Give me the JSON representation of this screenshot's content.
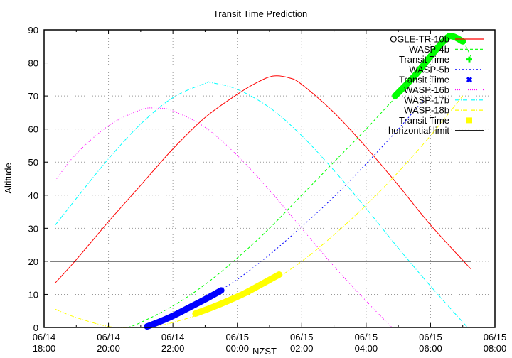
{
  "chart_data": {
    "type": "line",
    "title": "Transit Time Prediction",
    "xlabel": "NZST",
    "ylabel": "Altitude",
    "ylim": [
      0,
      90
    ],
    "xlim_hours_from_1800": [
      0,
      14
    ],
    "grid": true,
    "legend_position": "top-right inside",
    "x_ticks": [
      {
        "t": 0,
        "line1": "06/14",
        "line2": "18:00"
      },
      {
        "t": 2,
        "line1": "06/14",
        "line2": "20:00"
      },
      {
        "t": 4,
        "line1": "06/14",
        "line2": "22:00"
      },
      {
        "t": 6,
        "line1": "06/15",
        "line2": "00:00"
      },
      {
        "t": 8,
        "line1": "06/15",
        "line2": "02:00"
      },
      {
        "t": 10,
        "line1": "06/15",
        "line2": "04:00"
      },
      {
        "t": 12,
        "line1": "06/15",
        "line2": "06:00"
      },
      {
        "t": 14,
        "line1": "06/15",
        "line2": "08:00"
      }
    ],
    "y_ticks": [
      0,
      10,
      20,
      30,
      40,
      50,
      60,
      70,
      80,
      90
    ],
    "series": [
      {
        "name": "OGLE-TR-10b",
        "color": "#ff0000",
        "style": "solid",
        "x": [
          0.35,
          1,
          2,
          3,
          4,
          5,
          6,
          6.6,
          7.1,
          7.6,
          8,
          9,
          10,
          11,
          12,
          13.25
        ],
        "y": [
          13.5,
          20.5,
          32,
          43,
          54,
          63.5,
          70.5,
          74,
          76,
          75.5,
          73.5,
          65,
          54.5,
          43,
          31,
          17.7
        ]
      },
      {
        "name": "WASP-4b",
        "color": "#00ff00",
        "style": "dashed",
        "x": [
          2.6,
          3,
          4,
          5,
          6,
          7,
          8,
          9,
          10,
          11,
          12,
          12.7,
          13,
          13.25
        ],
        "y": [
          0,
          1.5,
          6.5,
          13,
          21,
          30,
          40,
          50,
          60,
          70.5,
          81,
          88,
          86.5,
          82
        ]
      },
      {
        "name": "Transit Time",
        "color": "#00ff00",
        "style": "band",
        "ref": "WASP-4b",
        "x": [
          10.9,
          11.5,
          12,
          12.5,
          12.7,
          13.0
        ],
        "y": [
          70,
          76,
          82,
          87.5,
          88,
          86.5
        ]
      },
      {
        "name": "WASP-5b",
        "color": "#0000ff",
        "style": "dotted",
        "x": [
          3.2,
          4,
          5,
          5.5,
          6,
          7,
          8,
          9,
          10,
          11,
          11.8
        ],
        "y": [
          0,
          3.5,
          8.5,
          11.5,
          14.5,
          22,
          30.5,
          39.5,
          49.5,
          60,
          69
        ]
      },
      {
        "name": "Transit Time",
        "color": "#0000ff",
        "style": "band",
        "ref": "WASP-5b",
        "x": [
          3.2,
          3.6,
          4,
          4.5,
          5.0,
          5.5
        ],
        "y": [
          0.3,
          1.8,
          3.5,
          6,
          8.5,
          11.2
        ]
      },
      {
        "name": "WASP-16b",
        "color": "#ff00ff",
        "style": "dotted",
        "x": [
          0.35,
          1,
          2,
          3,
          3.5,
          4,
          5,
          6,
          7,
          8,
          9,
          10,
          10.8
        ],
        "y": [
          44.5,
          52.5,
          61,
          65.8,
          66.3,
          65.5,
          60.5,
          52,
          41.5,
          30,
          18.5,
          8,
          0
        ]
      },
      {
        "name": "WASP-17b",
        "color": "#00ffff",
        "style": "dashdot",
        "x": [
          0.35,
          1,
          2,
          3,
          4,
          5,
          5.2,
          6,
          7,
          8,
          9,
          10,
          11,
          12,
          13.15
        ],
        "y": [
          31,
          39,
          51,
          61.5,
          69.5,
          73.8,
          74,
          72,
          66.5,
          58,
          47.5,
          36,
          24,
          12.5,
          0
        ]
      },
      {
        "name": "WASP-18b",
        "color": "#ffff00",
        "style": "dashdot",
        "x": [
          0.35,
          1,
          2,
          2.8,
          3.5,
          4,
          5,
          6,
          7,
          8,
          9,
          10,
          11,
          12,
          13.0
        ],
        "y": [
          5.5,
          3,
          0.3,
          0,
          0.5,
          1.5,
          4.5,
          8.5,
          13.5,
          20,
          28,
          37,
          47,
          58,
          70
        ]
      },
      {
        "name": "Transit Time",
        "color": "#ffff00",
        "style": "band",
        "ref": "WASP-18b",
        "x": [
          4.7,
          5.2,
          5.7,
          6.2,
          6.7,
          7.3
        ],
        "y": [
          4.2,
          6,
          8,
          10.2,
          12.8,
          16
        ]
      },
      {
        "name": "horizontial limit",
        "color": "#000000",
        "style": "solid",
        "x": [
          0.2,
          13.25
        ],
        "y": [
          20,
          20
        ]
      }
    ],
    "legend": [
      {
        "label": "OGLE-TR-10b",
        "color": "#ff0000",
        "kind": "line",
        "dash": ""
      },
      {
        "label": "WASP-4b",
        "color": "#00ff00",
        "kind": "line",
        "dash": "4,3"
      },
      {
        "label": "Transit Time",
        "color": "#00ff00",
        "kind": "plus"
      },
      {
        "label": "WASP-5b",
        "color": "#0000ff",
        "kind": "line",
        "dash": "2,3"
      },
      {
        "label": "Transit Time",
        "color": "#0000ff",
        "kind": "cross"
      },
      {
        "label": "WASP-16b",
        "color": "#ff00ff",
        "kind": "line",
        "dash": "1,2"
      },
      {
        "label": "WASP-17b",
        "color": "#00ffff",
        "kind": "line",
        "dash": "6,2,1,2"
      },
      {
        "label": "WASP-18b",
        "color": "#ffff00",
        "kind": "line",
        "dash": "6,2,1,2"
      },
      {
        "label": "Transit Time",
        "color": "#ffff00",
        "kind": "square"
      },
      {
        "label": "horizontial limit",
        "color": "#000000",
        "kind": "line",
        "dash": ""
      }
    ]
  }
}
